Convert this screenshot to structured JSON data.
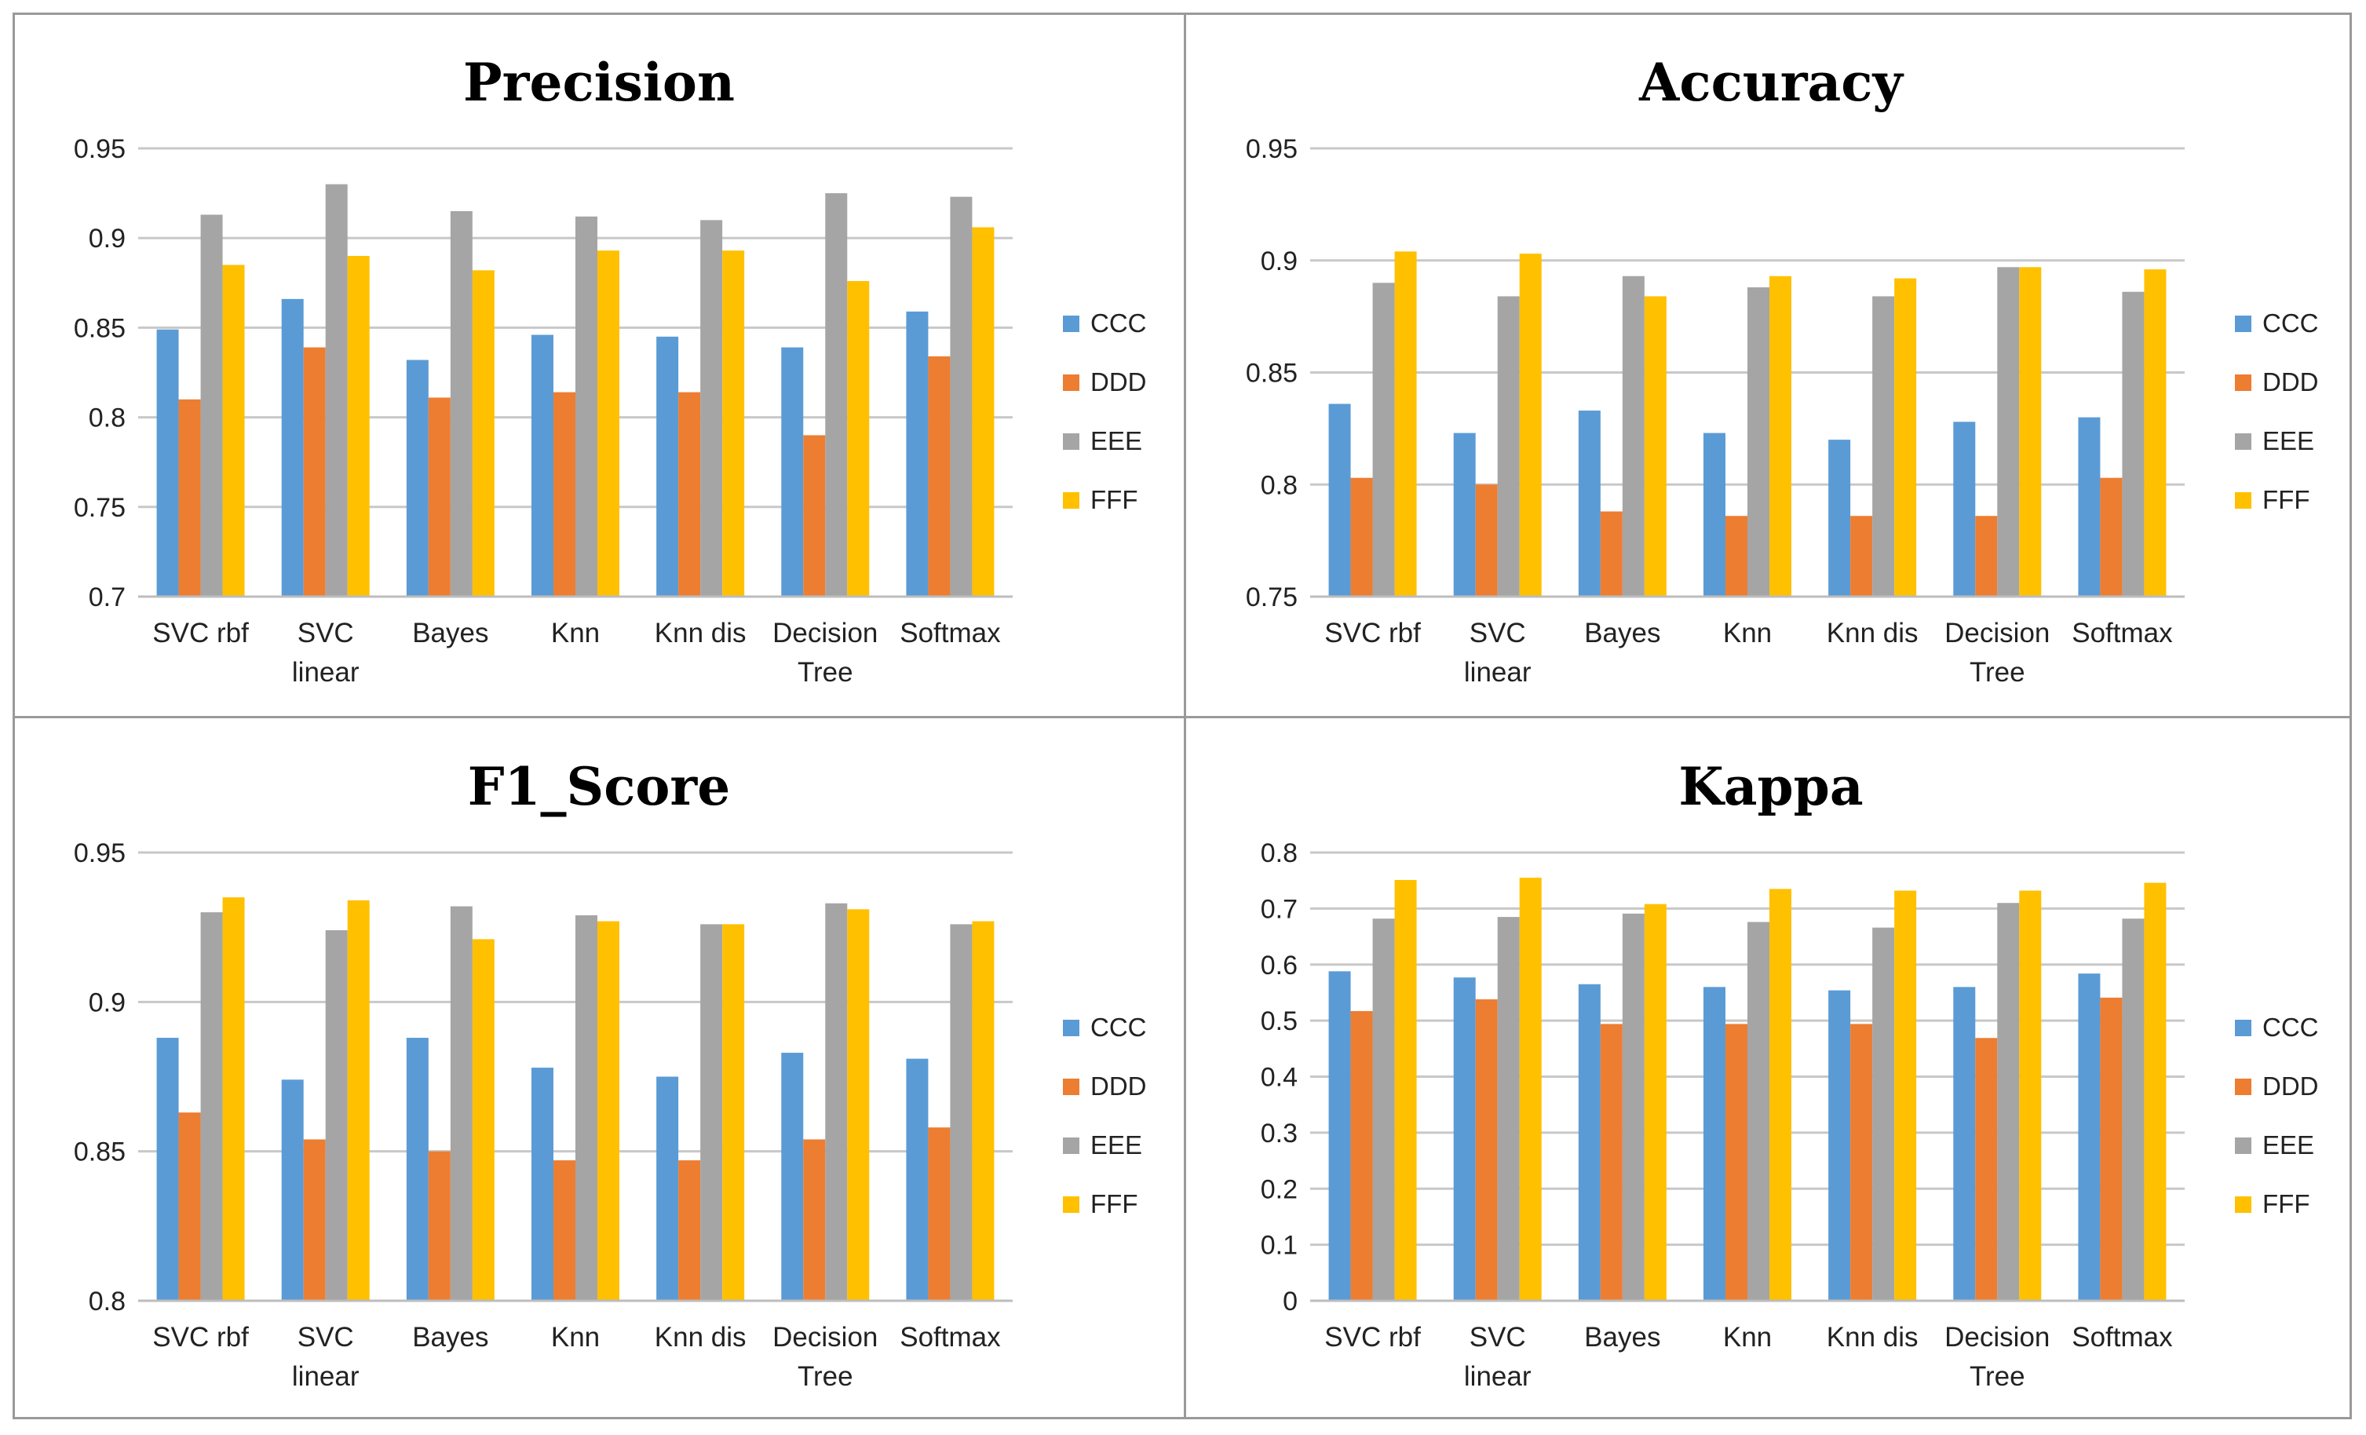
{
  "series_colors": {
    "CCC": "#5b9bd5",
    "DDD": "#ed7d31",
    "EEE": "#a5a5a5",
    "FFF": "#ffc000"
  },
  "chart_data": [
    {
      "type": "bar",
      "title": "Precision",
      "categories": [
        [
          "SVC rbf"
        ],
        [
          "SVC",
          "linear"
        ],
        [
          "Bayes"
        ],
        [
          "Knn"
        ],
        [
          "Knn dis"
        ],
        [
          "Decision",
          "Tree"
        ],
        [
          "Softmax"
        ]
      ],
      "ylim": [
        0.7,
        0.95
      ],
      "yticks": [
        "0.7",
        "0.75",
        "0.8",
        "0.85",
        "0.9",
        "0.95"
      ],
      "legend_position": "right",
      "series": [
        {
          "name": "CCC",
          "values": [
            0.849,
            0.866,
            0.832,
            0.846,
            0.845,
            0.839,
            0.859
          ]
        },
        {
          "name": "DDD",
          "values": [
            0.81,
            0.839,
            0.811,
            0.814,
            0.814,
            0.79,
            0.834
          ]
        },
        {
          "name": "EEE",
          "values": [
            0.913,
            0.93,
            0.915,
            0.912,
            0.91,
            0.925,
            0.923
          ]
        },
        {
          "name": "FFF",
          "values": [
            0.885,
            0.89,
            0.882,
            0.893,
            0.893,
            0.876,
            0.906
          ]
        }
      ]
    },
    {
      "type": "bar",
      "title": "Accuracy",
      "categories": [
        [
          "SVC rbf"
        ],
        [
          "SVC",
          "linear"
        ],
        [
          "Bayes"
        ],
        [
          "Knn"
        ],
        [
          "Knn dis"
        ],
        [
          "Decision",
          "Tree"
        ],
        [
          "Softmax"
        ]
      ],
      "ylim": [
        0.75,
        0.95
      ],
      "yticks": [
        "0.75",
        "0.8",
        "0.85",
        "0.9",
        "0.95"
      ],
      "legend_position": "right",
      "series": [
        {
          "name": "CCC",
          "values": [
            0.836,
            0.823,
            0.833,
            0.823,
            0.82,
            0.828,
            0.83
          ]
        },
        {
          "name": "DDD",
          "values": [
            0.803,
            0.8,
            0.788,
            0.786,
            0.786,
            0.786,
            0.803
          ]
        },
        {
          "name": "EEE",
          "values": [
            0.89,
            0.884,
            0.893,
            0.888,
            0.884,
            0.897,
            0.886
          ]
        },
        {
          "name": "FFF",
          "values": [
            0.904,
            0.903,
            0.884,
            0.893,
            0.892,
            0.897,
            0.896
          ]
        }
      ]
    },
    {
      "type": "bar",
      "title": "F1_Score",
      "categories": [
        [
          "SVC rbf"
        ],
        [
          "SVC",
          "linear"
        ],
        [
          "Bayes"
        ],
        [
          "Knn"
        ],
        [
          "Knn dis"
        ],
        [
          "Decision",
          "Tree"
        ],
        [
          "Softmax"
        ]
      ],
      "ylim": [
        0.8,
        0.95
      ],
      "yticks": [
        "0.8",
        "0.85",
        "0.9",
        "0.95"
      ],
      "legend_position": "right",
      "series": [
        {
          "name": "CCC",
          "values": [
            0.888,
            0.874,
            0.888,
            0.878,
            0.875,
            0.883,
            0.881
          ]
        },
        {
          "name": "DDD",
          "values": [
            0.863,
            0.854,
            0.85,
            0.847,
            0.847,
            0.854,
            0.858
          ]
        },
        {
          "name": "EEE",
          "values": [
            0.93,
            0.924,
            0.932,
            0.929,
            0.926,
            0.933,
            0.926
          ]
        },
        {
          "name": "FFF",
          "values": [
            0.935,
            0.934,
            0.921,
            0.927,
            0.926,
            0.931,
            0.927
          ]
        }
      ]
    },
    {
      "type": "bar",
      "title": "Kappa",
      "categories": [
        [
          "SVC rbf"
        ],
        [
          "SVC",
          "linear"
        ],
        [
          "Bayes"
        ],
        [
          "Knn"
        ],
        [
          "Knn dis"
        ],
        [
          "Decision",
          "Tree"
        ],
        [
          "Softmax"
        ]
      ],
      "ylim": [
        0,
        0.8
      ],
      "yticks": [
        "0",
        "0.1",
        "0.2",
        "0.3",
        "0.4",
        "0.5",
        "0.6",
        "0.7",
        "0.8"
      ],
      "legend_position": "right",
      "series": [
        {
          "name": "CCC",
          "values": [
            0.588,
            0.577,
            0.565,
            0.56,
            0.554,
            0.56,
            0.584
          ]
        },
        {
          "name": "DDD",
          "values": [
            0.517,
            0.538,
            0.494,
            0.494,
            0.494,
            0.469,
            0.541
          ]
        },
        {
          "name": "EEE",
          "values": [
            0.682,
            0.685,
            0.691,
            0.676,
            0.666,
            0.71,
            0.682
          ]
        },
        {
          "name": "FFF",
          "values": [
            0.751,
            0.755,
            0.708,
            0.735,
            0.732,
            0.732,
            0.746
          ]
        }
      ]
    }
  ]
}
